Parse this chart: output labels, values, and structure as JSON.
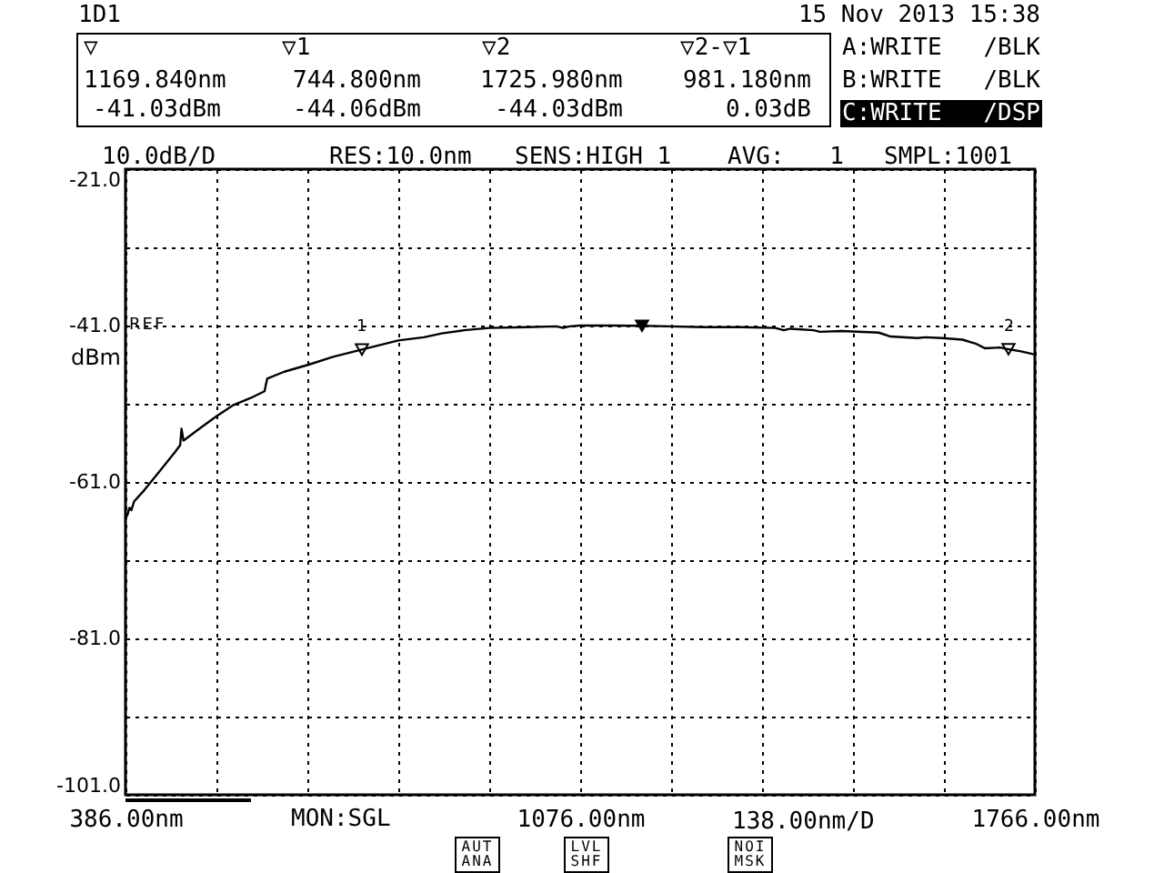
{
  "chart_data": {
    "type": "line",
    "ylabel": "dBm",
    "xlabel": "138.00nm/D",
    "annotations": [
      "1D1",
      "15 Nov 2013 15:38",
      "▽",
      "1169.840nm",
      "-41.03dBm",
      "▽1",
      "744.800nm",
      "-44.06dBm",
      "▽2",
      "1725.980nm",
      "-44.03dBm",
      "▽2-▽1",
      "981.180nm",
      "0.03dB",
      "A:WRITE",
      "/BLK",
      "B:WRITE",
      "/BLK",
      "C:WRITE",
      "/DSP",
      "10.0dB/D",
      "RES:10.0nm",
      "SENS:HIGH 1",
      "AVG: 1",
      "SMPL:1001",
      "REF",
      "MON:SGL",
      "AUT ANA",
      "LVL SHF",
      "NOI MSK",
      "1",
      "2"
    ],
    "xlim": [
      386,
      1766
    ],
    "xticks": [
      {
        "value": 386,
        "label": "386.00nm"
      },
      {
        "value": 524,
        "label": null
      },
      {
        "value": 662,
        "label": null
      },
      {
        "value": 800,
        "label": null
      },
      {
        "value": 938,
        "label": null
      },
      {
        "value": 1076,
        "label": "1076.00nm"
      },
      {
        "value": 1214,
        "label": null
      },
      {
        "value": 1352,
        "label": null
      },
      {
        "value": 1490,
        "label": null
      },
      {
        "value": 1628,
        "label": null
      },
      {
        "value": 1766,
        "label": "1766.00nm"
      }
    ],
    "ylim": [
      -101,
      -21
    ],
    "yticks": [
      {
        "value": -101,
        "label": "-101.0"
      },
      {
        "value": -91,
        "label": null
      },
      {
        "value": -81,
        "label": "-81.0"
      },
      {
        "value": -71,
        "label": null
      },
      {
        "value": -61,
        "label": "-61.0"
      },
      {
        "value": -51,
        "label": null
      },
      {
        "value": -41,
        "label": "-41.0"
      },
      {
        "value": -31,
        "label": null
      },
      {
        "value": -21,
        "label": "-21.0"
      }
    ],
    "grid": true,
    "series": [
      {
        "type": "line",
        "color": "#000000",
        "x": [
          386,
          389,
          392,
          395,
          399,
          415,
          438,
          461,
          469,
          471,
          474,
          498,
          524,
          549,
          575,
          597,
          601,
          627,
          664,
          701,
          744.8,
          800,
          839,
          866,
          900,
          938,
          995,
          1040,
          1050,
          1060,
          1076,
          1120,
          1169.84,
          1211,
          1266,
          1320,
          1372,
          1385,
          1395,
          1430,
          1440,
          1473,
          1529,
          1547,
          1588,
          1600,
          1625,
          1656,
          1676,
          1690,
          1713,
          1725.98,
          1745,
          1766
        ],
        "values": [
          -65.6,
          -65.2,
          -64.3,
          -64.6,
          -63.5,
          -62.0,
          -59.6,
          -57.2,
          -56.3,
          -54.2,
          -55.7,
          -54.2,
          -52.6,
          -51.2,
          -50.3,
          -49.4,
          -47.8,
          -46.9,
          -46.0,
          -45.0,
          -44.06,
          -42.9,
          -42.5,
          -42.0,
          -41.6,
          -41.3,
          -41.2,
          -41.1,
          -41.3,
          -41.1,
          -41.0,
          -41.0,
          -41.03,
          -41.1,
          -41.2,
          -41.2,
          -41.3,
          -41.6,
          -41.4,
          -41.6,
          -41.8,
          -41.7,
          -41.9,
          -42.4,
          -42.6,
          -42.5,
          -42.6,
          -42.8,
          -43.3,
          -43.9,
          -43.8,
          -44.03,
          -44.3,
          -44.7
        ]
      },
      {
        "type": "scatter",
        "marker": "triangle",
        "color": "#000000",
        "x": [
          1169.84
        ],
        "values": [
          -41.03
        ]
      },
      {
        "type": "scatter",
        "marker": "triangle",
        "color": "#000000",
        "x": [
          744.8,
          1725.98
        ],
        "values": [
          -44.06,
          -44.03
        ]
      }
    ]
  }
}
